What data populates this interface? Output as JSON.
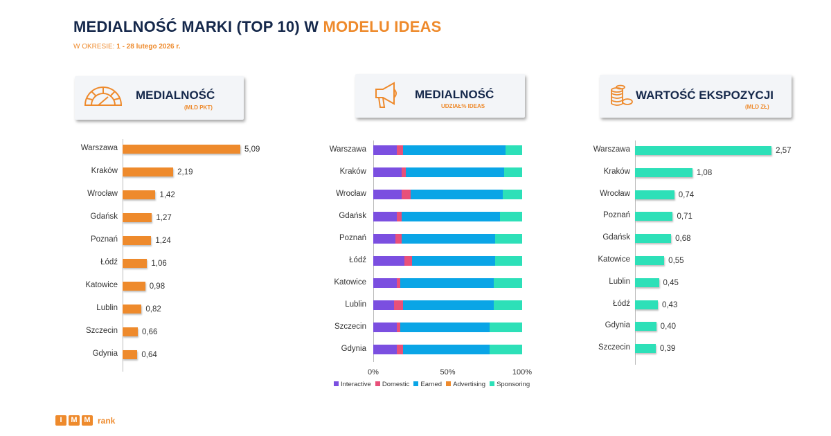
{
  "title": {
    "main": "MEDIALNOŚĆ MARKI (TOP 10) W ",
    "accent": "MODELU IDEAS"
  },
  "period": {
    "label": "W OKRESIE: ",
    "value": "1 - 28 lutego 2026 r."
  },
  "colors": {
    "orange": "#ee8a2c",
    "teal": "#2de0b8",
    "navy": "#15284b",
    "interactive": "#7b4fe0",
    "domestic": "#e8507a",
    "earned": "#0aa5e6",
    "advertising": "#ee8a2c",
    "sponsoring": "#2de0b8"
  },
  "headers": [
    {
      "title": "MEDIALNOŚĆ",
      "subtitle": "(MLD PKT)",
      "icon": "gauge-icon"
    },
    {
      "title": "MEDIALNOŚĆ",
      "subtitle": "UDZIAŁ% IDEAS",
      "icon": "megaphone-icon"
    },
    {
      "title": "WARTOŚĆ EKSPOZYCJI",
      "subtitle": "(MLD ZŁ)",
      "icon": "coins-icon"
    }
  ],
  "chart_data": [
    {
      "type": "bar",
      "orientation": "horizontal",
      "title": "MEDIALNOŚĆ (MLD PKT)",
      "categories": [
        "Warszawa",
        "Kraków",
        "Wrocław",
        "Gdańsk",
        "Poznań",
        "Łódź",
        "Katowice",
        "Lublin",
        "Szczecin",
        "Gdynia"
      ],
      "values": [
        5.09,
        2.19,
        1.42,
        1.27,
        1.24,
        1.06,
        0.98,
        0.82,
        0.66,
        0.64
      ],
      "labels": [
        "5,09",
        "2,19",
        "1,42",
        "1,27",
        "1,24",
        "1,06",
        "0,98",
        "0,82",
        "0,66",
        "0,64"
      ]
    },
    {
      "type": "bar",
      "orientation": "horizontal",
      "stacked": "percent",
      "title": "MEDIALNOŚĆ UDZIAŁ% IDEAS",
      "categories": [
        "Warszawa",
        "Kraków",
        "Wrocław",
        "Gdańsk",
        "Poznań",
        "Łódź",
        "Katowice",
        "Lublin",
        "Szczecin",
        "Gdynia"
      ],
      "series": [
        {
          "name": "Interactive",
          "values": [
            16,
            19,
            19,
            16,
            15,
            21,
            16,
            14,
            16,
            16
          ]
        },
        {
          "name": "Domestic",
          "values": [
            4,
            3,
            6,
            3,
            4,
            5,
            2,
            6,
            2,
            4
          ]
        },
        {
          "name": "Earned",
          "values": [
            69,
            66,
            62,
            66,
            63,
            56,
            63,
            61,
            60,
            58
          ]
        },
        {
          "name": "Advertising",
          "values": [
            0,
            0,
            0,
            0,
            0,
            0,
            0,
            0,
            0,
            0
          ]
        },
        {
          "name": "Sponsoring",
          "values": [
            11,
            12,
            13,
            15,
            18,
            18,
            19,
            19,
            22,
            22
          ]
        }
      ],
      "xticks": [
        "0%",
        "50%",
        "100%"
      ],
      "xlim": [
        0,
        100
      ],
      "legend": "bottom"
    },
    {
      "type": "bar",
      "orientation": "horizontal",
      "title": "WARTOŚĆ EKSPOZYCJI (MLD ZŁ)",
      "categories": [
        "Warszawa",
        "Kraków",
        "Wrocław",
        "Poznań",
        "Gdańsk",
        "Katowice",
        "Lublin",
        "Łódź",
        "Gdynia",
        "Szczecin"
      ],
      "values": [
        2.57,
        1.08,
        0.74,
        0.71,
        0.68,
        0.55,
        0.45,
        0.43,
        0.4,
        0.39
      ],
      "labels": [
        "2,57",
        "1,08",
        "0,74",
        "0,71",
        "0,68",
        "0,55",
        "0,45",
        "0,43",
        "0,40",
        "0,39"
      ]
    }
  ],
  "logo": {
    "letters": [
      "I",
      "M",
      "M"
    ],
    "word": "rank"
  }
}
